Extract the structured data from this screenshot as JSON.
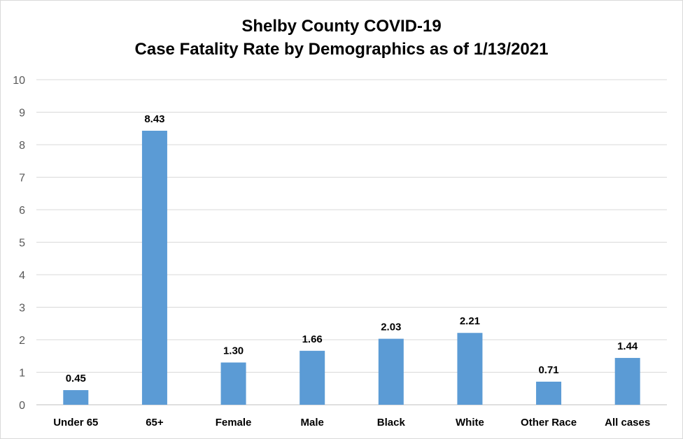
{
  "chart_data": {
    "type": "bar",
    "title_line1": "Shelby County COVID-19",
    "title_line2": "Case Fatality Rate by Demographics as of 1/13/2021",
    "xlabel": "",
    "ylabel": "",
    "ylim": [
      0,
      10
    ],
    "yticks": [
      "0",
      "1",
      "2",
      "3",
      "4",
      "5",
      "6",
      "7",
      "8",
      "9",
      "10"
    ],
    "grid": true,
    "legend": "none",
    "bar_color": "#5b9bd5",
    "categories": [
      "Under 65",
      "65+",
      "Female",
      "Male",
      "Black",
      "White",
      "Other Race",
      "All cases"
    ],
    "values": [
      0.45,
      8.43,
      1.3,
      1.66,
      2.03,
      2.21,
      0.71,
      1.44
    ],
    "value_labels": [
      "0.45",
      "8.43",
      "1.30",
      "1.66",
      "2.03",
      "2.21",
      "0.71",
      "1.44"
    ]
  }
}
